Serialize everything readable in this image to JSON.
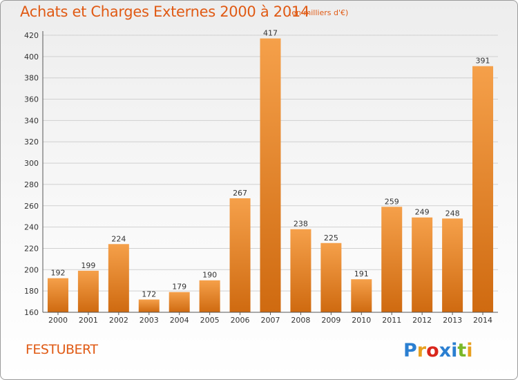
{
  "header": {
    "title": "Achats et Charges Externes 2000 à 2014",
    "subtitle": "(en milliers d'€)"
  },
  "footer": {
    "commune": "FESTUBERT",
    "logo_text": "Proxiti",
    "logo_colors": [
      "#2b7fd1",
      "#e8a020",
      "#d9261c",
      "#2b7fd1",
      "#2b7fd1",
      "#7ab828",
      "#e8a020"
    ]
  },
  "chart_data": {
    "type": "bar",
    "categories": [
      "2000",
      "2001",
      "2002",
      "2003",
      "2004",
      "2005",
      "2006",
      "2007",
      "2008",
      "2009",
      "2010",
      "2011",
      "2012",
      "2013",
      "2014"
    ],
    "values": [
      192,
      199,
      224,
      172,
      179,
      190,
      267,
      417,
      238,
      225,
      191,
      259,
      249,
      248,
      391
    ],
    "ylim": [
      160,
      420
    ],
    "yticks": [
      160,
      180,
      200,
      220,
      240,
      260,
      280,
      300,
      320,
      340,
      360,
      380,
      400,
      420
    ],
    "grid": true,
    "bar_color_top": "#f5a04a",
    "bar_color_bottom": "#cf6a10",
    "grid_color": "#d0d0d0",
    "text_color": "#333333"
  }
}
